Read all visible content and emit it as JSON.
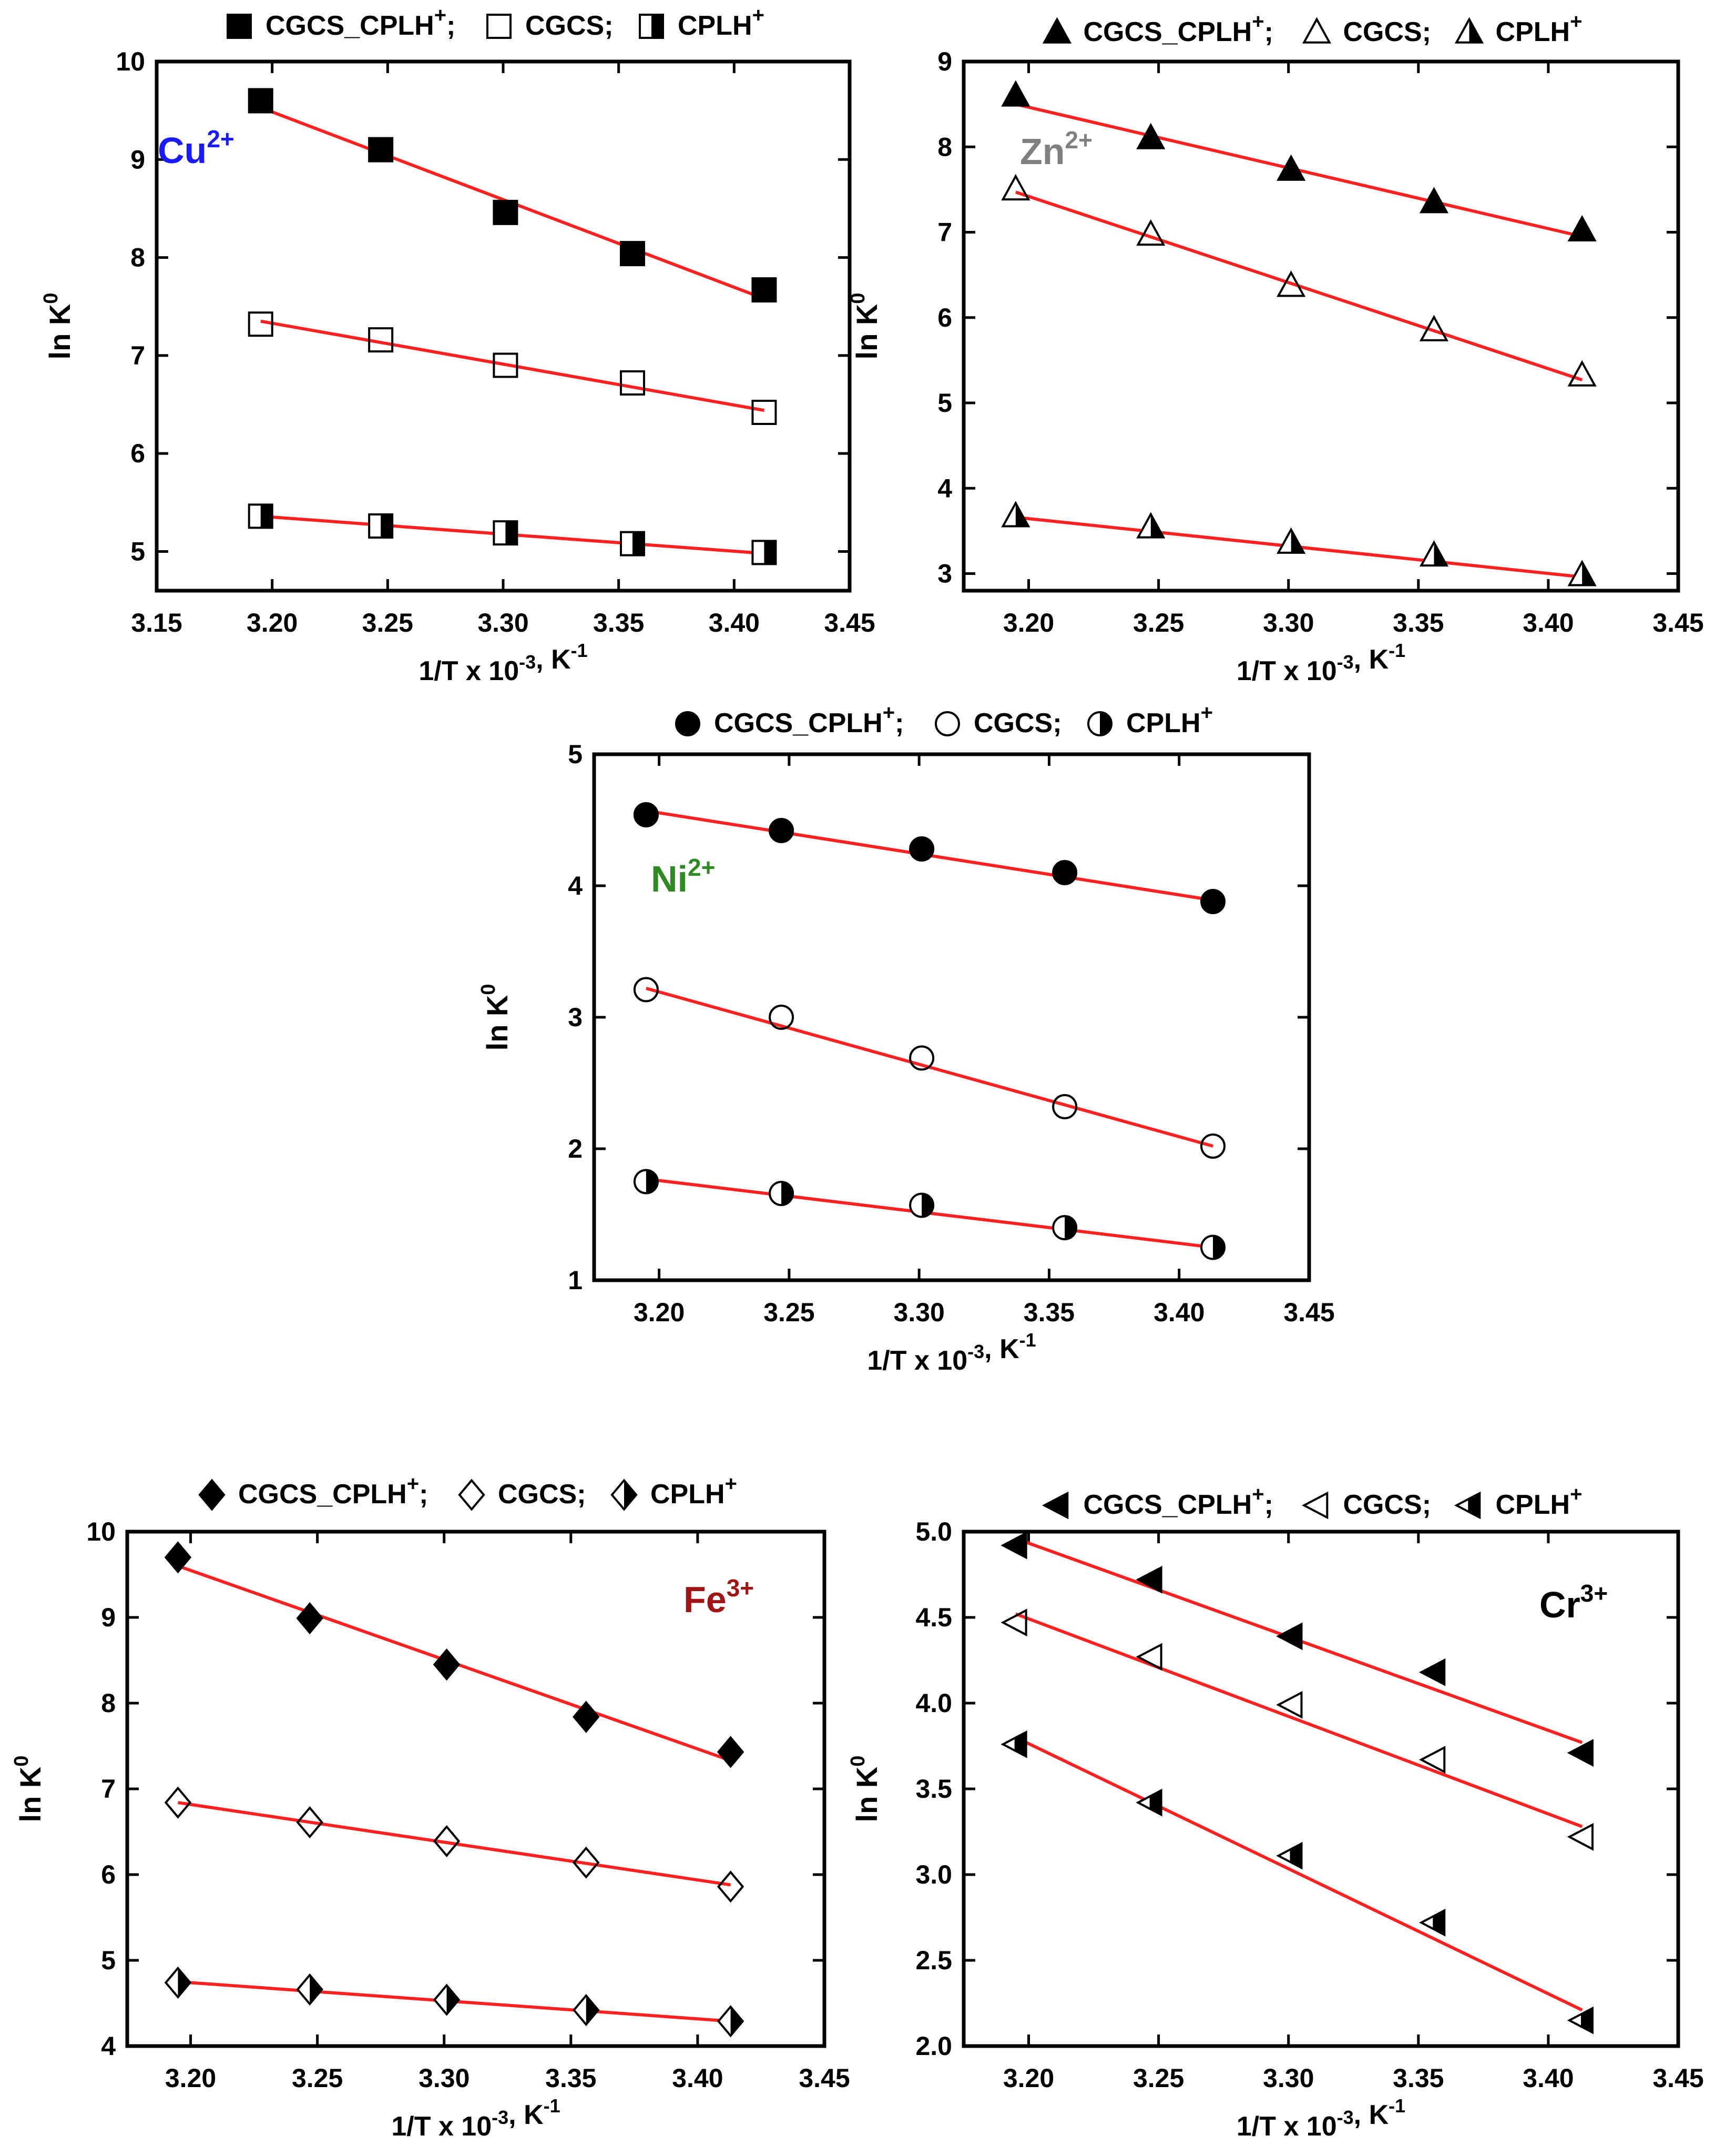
{
  "chart_data": [
    {
      "type": "scatter",
      "ion": "Cu",
      "ion_charge": "2+",
      "ion_color": "#1a1aff",
      "marker": "square",
      "xlabel": "1/T x 10-3, K-1",
      "ylabel": "ln K0",
      "xlim": [
        3.15,
        3.45
      ],
      "ylim": [
        4.6,
        10.0
      ],
      "xticks": [
        3.15,
        3.2,
        3.25,
        3.3,
        3.35,
        3.4,
        3.45
      ],
      "yticks": [
        5,
        6,
        7,
        8,
        9,
        10
      ],
      "legend": [
        "CGCS_CPLH+;",
        "CGCS;",
        "CPLH+"
      ],
      "x": [
        3.195,
        3.247,
        3.301,
        3.356,
        3.413
      ],
      "series": [
        {
          "name": "CGCS_CPLH+",
          "fill": "full",
          "values": [
            9.6,
            9.1,
            8.46,
            8.04,
            7.67
          ],
          "fit": [
            9.53,
            7.58
          ]
        },
        {
          "name": "CGCS",
          "fill": "none",
          "values": [
            7.32,
            7.16,
            6.9,
            6.72,
            6.42
          ],
          "fit": [
            7.35,
            6.44
          ]
        },
        {
          "name": "CPLH+",
          "fill": "half",
          "values": [
            5.36,
            5.26,
            5.19,
            5.08,
            4.99
          ],
          "fit": [
            5.36,
            4.98
          ]
        }
      ]
    },
    {
      "type": "scatter",
      "ion": "Zn",
      "ion_charge": "2+",
      "ion_color": "#808080",
      "marker": "triangle",
      "xlabel": "1/T x 10-3, K-1",
      "ylabel": "ln K0",
      "xlim": [
        3.175,
        3.45
      ],
      "ylim": [
        2.8,
        9.0
      ],
      "xticks": [
        3.2,
        3.25,
        3.3,
        3.35,
        3.4,
        3.45
      ],
      "yticks": [
        3,
        4,
        5,
        6,
        7,
        8,
        9
      ],
      "legend": [
        "CGCS_CPLH+;",
        "CGCS;",
        "CPLH+"
      ],
      "x": [
        3.195,
        3.247,
        3.301,
        3.356,
        3.413
      ],
      "series": [
        {
          "name": "CGCS_CPLH+",
          "fill": "full",
          "values": [
            8.6,
            8.1,
            7.73,
            7.35,
            7.02
          ],
          "fit": [
            8.5,
            6.95
          ]
        },
        {
          "name": "CGCS",
          "fill": "none",
          "values": [
            7.5,
            6.97,
            6.37,
            5.85,
            5.32
          ],
          "fit": [
            7.47,
            5.27
          ]
        },
        {
          "name": "CPLH+",
          "fill": "half",
          "values": [
            3.67,
            3.54,
            3.36,
            3.21,
            2.98
          ],
          "fit": [
            3.66,
            2.96
          ]
        }
      ]
    },
    {
      "type": "scatter",
      "ion": "Ni",
      "ion_charge": "2+",
      "ion_color": "#2e8b22",
      "marker": "circle",
      "xlabel": "1/T x 10-3, K-1",
      "ylabel": "ln K0",
      "xlim": [
        3.175,
        3.45
      ],
      "ylim": [
        1.0,
        5.0
      ],
      "xticks": [
        3.2,
        3.25,
        3.3,
        3.35,
        3.4,
        3.45
      ],
      "yticks": [
        1,
        2,
        3,
        4,
        5
      ],
      "legend": [
        "CGCS_CPLH+;",
        "CGCS;",
        "CPLH+"
      ],
      "x": [
        3.195,
        3.247,
        3.301,
        3.356,
        3.413
      ],
      "series": [
        {
          "name": "CGCS_CPLH+",
          "fill": "full",
          "values": [
            4.54,
            4.42,
            4.28,
            4.1,
            3.88
          ],
          "fit": [
            4.57,
            3.89
          ]
        },
        {
          "name": "CGCS",
          "fill": "none",
          "values": [
            3.21,
            3.0,
            2.69,
            2.32,
            2.02
          ],
          "fit": [
            3.22,
            2.02
          ]
        },
        {
          "name": "CPLH+",
          "fill": "half",
          "values": [
            1.75,
            1.66,
            1.57,
            1.4,
            1.25
          ],
          "fit": [
            1.77,
            1.25
          ]
        }
      ]
    },
    {
      "type": "scatter",
      "ion": "Fe",
      "ion_charge": "3+",
      "ion_color": "#a01414",
      "marker": "diamond",
      "xlabel": "1/T x 10-3, K-1",
      "ylabel": "ln K0",
      "xlim": [
        3.175,
        3.45
      ],
      "ylim": [
        4.0,
        10.0
      ],
      "xticks": [
        3.2,
        3.25,
        3.3,
        3.35,
        3.4,
        3.45
      ],
      "yticks": [
        4,
        5,
        6,
        7,
        8,
        9,
        10
      ],
      "legend": [
        "CGCS_CPLH+;",
        "CGCS;",
        "CPLH+"
      ],
      "x": [
        3.195,
        3.247,
        3.301,
        3.356,
        3.413
      ],
      "series": [
        {
          "name": "CGCS_CPLH+",
          "fill": "full",
          "values": [
            9.7,
            8.99,
            8.45,
            7.84,
            7.43
          ],
          "fit": [
            9.6,
            7.33
          ]
        },
        {
          "name": "CGCS",
          "fill": "none",
          "values": [
            6.84,
            6.61,
            6.39,
            6.14,
            5.86
          ],
          "fit": [
            6.84,
            5.88
          ]
        },
        {
          "name": "CPLH+",
          "fill": "half",
          "values": [
            4.74,
            4.66,
            4.54,
            4.42,
            4.29
          ],
          "fit": [
            4.75,
            4.29
          ]
        }
      ]
    },
    {
      "type": "scatter",
      "ion": "Cr",
      "ion_charge": "3+",
      "ion_color": "#000000",
      "marker": "triangle-left",
      "xlabel": "1/T x 10-3, K-1",
      "ylabel": "ln K0",
      "xlim": [
        3.175,
        3.45
      ],
      "ylim": [
        2.0,
        5.0
      ],
      "xticks": [
        3.2,
        3.25,
        3.3,
        3.35,
        3.4,
        3.45
      ],
      "yticks": [
        "2.0",
        "2.5",
        "3.0",
        "3.5",
        "4.0",
        "4.5",
        "5.0"
      ],
      "legend": [
        "CGCS_CPLH+;",
        "CGCS;",
        "CPLH+"
      ],
      "x": [
        3.195,
        3.247,
        3.301,
        3.356,
        3.413
      ],
      "series": [
        {
          "name": "CGCS_CPLH+",
          "fill": "full",
          "values": [
            4.92,
            4.72,
            4.39,
            4.18,
            3.71
          ],
          "fit": [
            4.96,
            3.77
          ]
        },
        {
          "name": "CGCS",
          "fill": "none",
          "values": [
            4.47,
            4.27,
            3.99,
            3.67,
            3.22
          ],
          "fit": [
            4.52,
            3.28
          ]
        },
        {
          "name": "CPLH+",
          "fill": "half",
          "values": [
            3.76,
            3.42,
            3.11,
            2.72,
            2.15
          ],
          "fit": [
            3.8,
            2.21
          ]
        }
      ]
    }
  ],
  "colors": {
    "fit_line": "#ff2020",
    "marker_edge": "#000000",
    "axes": "#000000"
  }
}
